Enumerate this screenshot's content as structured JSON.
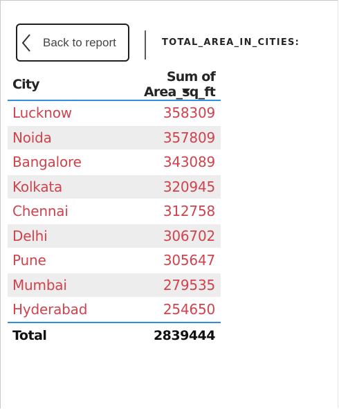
{
  "toolbar": {
    "back_label": "Back to report",
    "visual_title": "TOTAL_AREA_IN_CITIES:"
  },
  "table": {
    "columns": [
      "City",
      "Sum of Area_sq_ft"
    ],
    "sort": {
      "column": "Sum of Area_sq_ft",
      "direction": "descending"
    },
    "rows": [
      {
        "city": "Lucknow",
        "area": "358309"
      },
      {
        "city": "Noida",
        "area": "357809"
      },
      {
        "city": "Bangalore",
        "area": "343089"
      },
      {
        "city": "Kolkata",
        "area": "320945"
      },
      {
        "city": "Chennai",
        "area": "312758"
      },
      {
        "city": "Delhi",
        "area": "306702"
      },
      {
        "city": "Pune",
        "area": "305647"
      },
      {
        "city": "Mumbai",
        "area": "279535"
      },
      {
        "city": "Hyderabad",
        "area": "254650"
      }
    ],
    "total": {
      "label": "Total",
      "value": "2839444"
    }
  },
  "colors": {
    "value_text": "#d0424c",
    "header_rule": "#2f8ee0",
    "band": "#ededed"
  }
}
